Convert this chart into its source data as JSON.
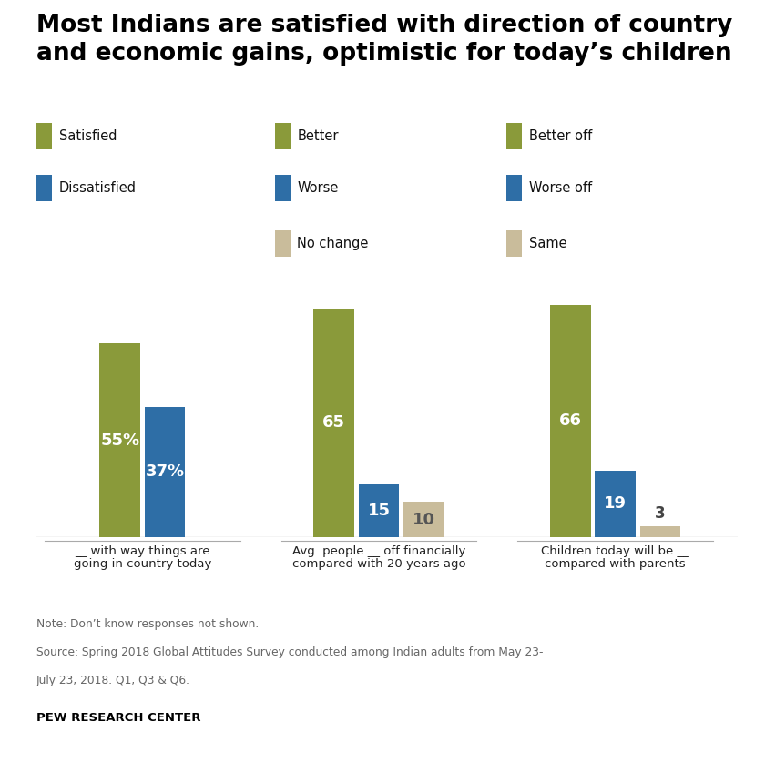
{
  "title": "Most Indians are satisfied with direction of country\nand economic gains, optimistic for today’s children",
  "title_fontsize": 19,
  "groups": [
    {
      "label": "__ with way things are\ngoing in country today",
      "bars": [
        {
          "label": "Satisfied",
          "value": 55,
          "color": "#8a9a3a",
          "text": "55%"
        },
        {
          "label": "Dissatisfied",
          "value": 37,
          "color": "#2e6ea6",
          "text": "37%"
        }
      ]
    },
    {
      "label": "Avg. people __ off financially\ncompared with 20 years ago",
      "bars": [
        {
          "label": "Better",
          "value": 65,
          "color": "#8a9a3a",
          "text": "65"
        },
        {
          "label": "Worse",
          "value": 15,
          "color": "#2e6ea6",
          "text": "15"
        },
        {
          "label": "No change",
          "value": 10,
          "color": "#c9bc9b",
          "text": "10"
        }
      ]
    },
    {
      "label": "Children today will be __\ncompared with parents",
      "bars": [
        {
          "label": "Better off",
          "value": 66,
          "color": "#8a9a3a",
          "text": "66"
        },
        {
          "label": "Worse off",
          "value": 19,
          "color": "#2e6ea6",
          "text": "19"
        },
        {
          "label": "Same",
          "value": 3,
          "color": "#c9bc9b",
          "text": "3"
        }
      ]
    }
  ],
  "legend_cols": [
    [
      {
        "label": "Satisfied",
        "color": "#8a9a3a"
      },
      {
        "label": "Dissatisfied",
        "color": "#2e6ea6"
      }
    ],
    [
      {
        "label": "Better",
        "color": "#8a9a3a"
      },
      {
        "label": "Worse",
        "color": "#2e6ea6"
      },
      {
        "label": "No change",
        "color": "#c9bc9b"
      }
    ],
    [
      {
        "label": "Better off",
        "color": "#8a9a3a"
      },
      {
        "label": "Worse off",
        "color": "#2e6ea6"
      },
      {
        "label": "Same",
        "color": "#c9bc9b"
      }
    ]
  ],
  "note_lines": [
    "Note: Don’t know responses not shown.",
    "Source: Spring 2018 Global Attitudes Survey conducted among Indian adults from May 23-",
    "July 23, 2018. Q1, Q3 & Q6."
  ],
  "source_bold": "PEW RESEARCH CENTER",
  "ylim": [
    0,
    75
  ],
  "bar_width": 0.55,
  "background_color": "#ffffff",
  "olive_color": "#8a9a3a",
  "blue_color": "#2e6ea6",
  "tan_color": "#c9bc9b"
}
